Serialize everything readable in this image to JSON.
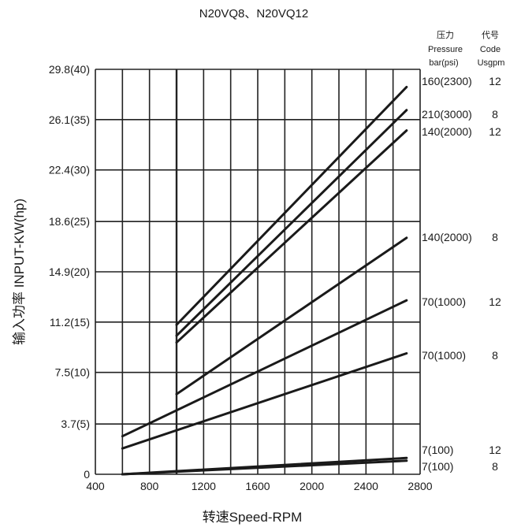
{
  "chart_data": {
    "type": "line",
    "title": "N20VQ8、N20VQ12",
    "xlabel": "转速Speed-RPM",
    "ylabel": "输入功率 INPUT-KW(hp)",
    "x_ticks": [
      400,
      800,
      1200,
      1600,
      2000,
      2400,
      2800
    ],
    "y_ticks": [
      "0",
      "3.7(5)",
      "7.5(10)",
      "11.2(15)",
      "14.9(20)",
      "18.6(25)",
      "22.4(30)",
      "26.1(35)",
      "29.8(40)"
    ],
    "y_tick_values": [
      0,
      3.7,
      7.5,
      11.2,
      14.9,
      18.6,
      22.4,
      26.1,
      29.8
    ],
    "xlim": [
      400,
      2800
    ],
    "ylim": [
      0,
      29.8
    ],
    "grid": true,
    "legend_header": {
      "pressure_cn": "压力",
      "pressure_en": "Pressure",
      "pressure_unit": "bar(psi)",
      "code_cn": "代号",
      "code_en": "Code",
      "code_unit": "Usgpm"
    },
    "series": [
      {
        "pressure": "160(2300)",
        "code": "12",
        "x": [
          1000,
          2700
        ],
        "y": [
          11.0,
          28.5
        ]
      },
      {
        "pressure": "210(3000)",
        "code": "8",
        "x": [
          1000,
          2700
        ],
        "y": [
          10.2,
          26.8
        ]
      },
      {
        "pressure": "140(2000)",
        "code": "12",
        "x": [
          1000,
          2700
        ],
        "y": [
          9.7,
          25.3
        ]
      },
      {
        "pressure": "140(2000)",
        "code": "8",
        "x": [
          1000,
          2700
        ],
        "y": [
          5.9,
          17.4
        ]
      },
      {
        "pressure": "70(1000)",
        "code": "12",
        "x": [
          600,
          2700
        ],
        "y": [
          2.8,
          12.8
        ]
      },
      {
        "pressure": "70(1000)",
        "code": "8",
        "x": [
          600,
          2700
        ],
        "y": [
          1.9,
          8.9
        ]
      },
      {
        "pressure": "7(100)",
        "code": "12",
        "x": [
          600,
          2700
        ],
        "y": [
          0.0,
          1.2
        ]
      },
      {
        "pressure": "7(100)",
        "code": "8",
        "x": [
          600,
          2700
        ],
        "y": [
          0.0,
          1.0
        ]
      }
    ]
  }
}
